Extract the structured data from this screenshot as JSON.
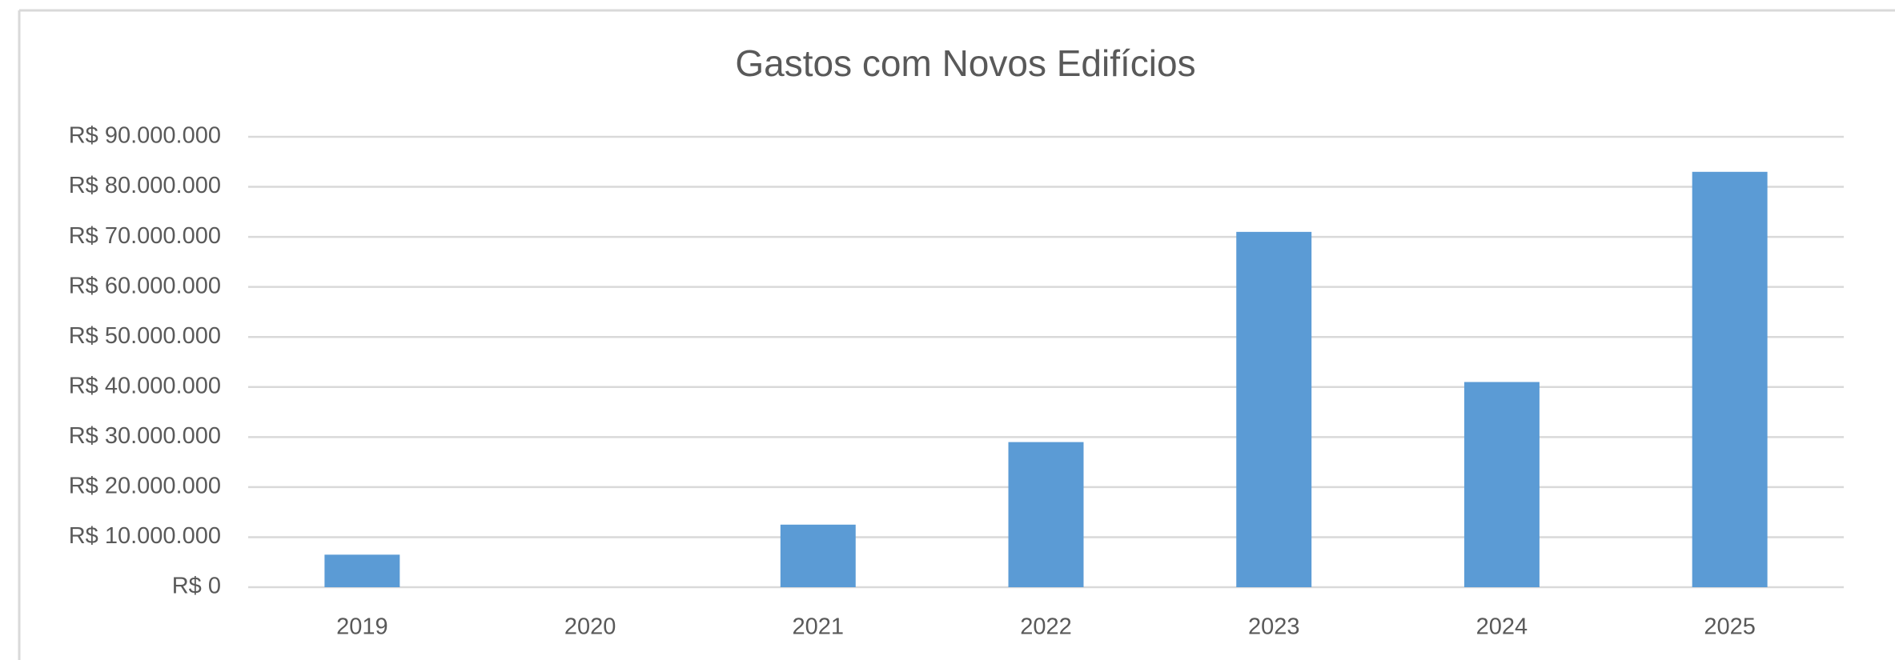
{
  "chart_data": {
    "type": "bar",
    "title": "Gastos com Novos Edifícios",
    "categories": [
      "2019",
      "2020",
      "2021",
      "2022",
      "2023",
      "2024",
      "2025"
    ],
    "values": [
      6500000,
      0,
      12500000,
      29000000,
      71000000,
      41000000,
      83000000
    ],
    "color": "#5b9bd5",
    "ylim": [
      0,
      90000000
    ],
    "yticks": [
      {
        "value": 0,
        "label": "R$ 0"
      },
      {
        "value": 10000000,
        "label": "R$ 10.000.000"
      },
      {
        "value": 20000000,
        "label": "R$ 20.000.000"
      },
      {
        "value": 30000000,
        "label": "R$ 30.000.000"
      },
      {
        "value": 40000000,
        "label": "R$ 40.000.000"
      },
      {
        "value": 50000000,
        "label": "R$ 50.000.000"
      },
      {
        "value": 60000000,
        "label": "R$ 60.000.000"
      },
      {
        "value": 70000000,
        "label": "R$ 70.000.000"
      },
      {
        "value": 80000000,
        "label": "R$ 80.000.000"
      },
      {
        "value": 90000000,
        "label": "R$ 90.000.000"
      }
    ],
    "grid": true
  }
}
